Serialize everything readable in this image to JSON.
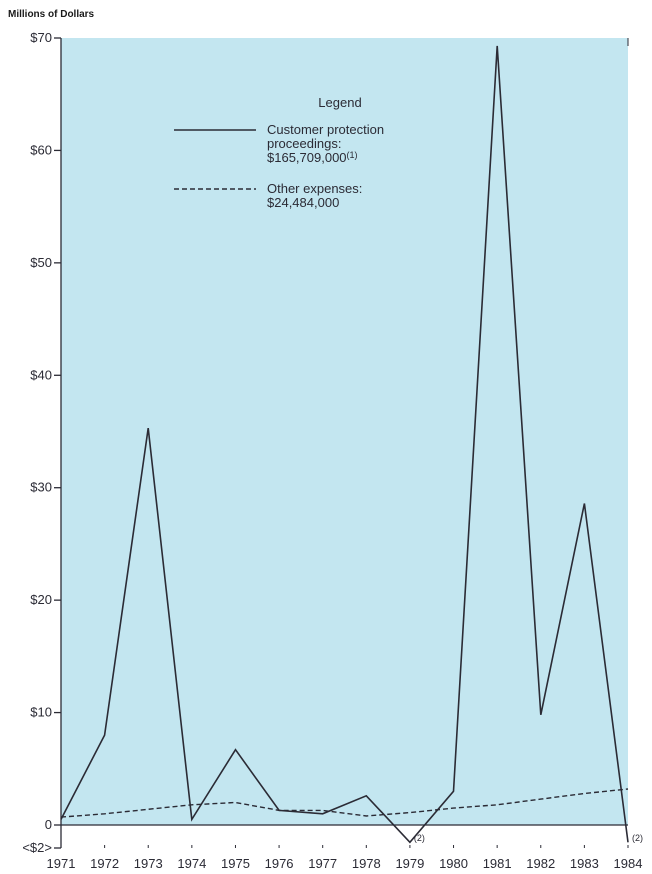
{
  "chart_data": {
    "type": "line",
    "y_unit_label": "Millions of Dollars",
    "x": [
      "1971",
      "1972",
      "1973",
      "1974",
      "1975",
      "1976",
      "1977",
      "1978",
      "1979",
      "1980",
      "1981",
      "1982",
      "1983",
      "1984"
    ],
    "series": [
      {
        "name": "Customer protection proceedings:",
        "total": "$165,709,000",
        "total_note": "(1)",
        "style": "solid",
        "values": [
          0.5,
          8.0,
          35.3,
          0.5,
          6.7,
          1.3,
          1.0,
          2.6,
          -1.5,
          3.0,
          69.3,
          9.8,
          28.6,
          -1.5
        ]
      },
      {
        "name": "Other expenses:",
        "total": "$24,484,000",
        "style": "dashed",
        "values": [
          0.7,
          1.0,
          1.4,
          1.8,
          2.0,
          1.3,
          1.3,
          0.8,
          1.1,
          1.5,
          1.8,
          2.3,
          2.8,
          3.2
        ]
      }
    ],
    "y_ticks": [
      {
        "value": 70,
        "label": "$70"
      },
      {
        "value": 60,
        "label": "$60"
      },
      {
        "value": 50,
        "label": "$50"
      },
      {
        "value": 40,
        "label": "$40"
      },
      {
        "value": 30,
        "label": "$30"
      },
      {
        "value": 20,
        "label": "$20"
      },
      {
        "value": 10,
        "label": "$10"
      },
      {
        "value": 0,
        "label": "0"
      },
      {
        "value": -2,
        "label": "<$2>"
      }
    ],
    "ylim": [
      -2,
      70
    ],
    "legend_title": "Legend",
    "legend_position": "top-center",
    "annotations": [
      {
        "x": "1979",
        "text": "(2)"
      },
      {
        "x": "1984",
        "text": "(2)"
      }
    ],
    "background": "#c3e6f0",
    "line_color": "#2b2b35"
  }
}
